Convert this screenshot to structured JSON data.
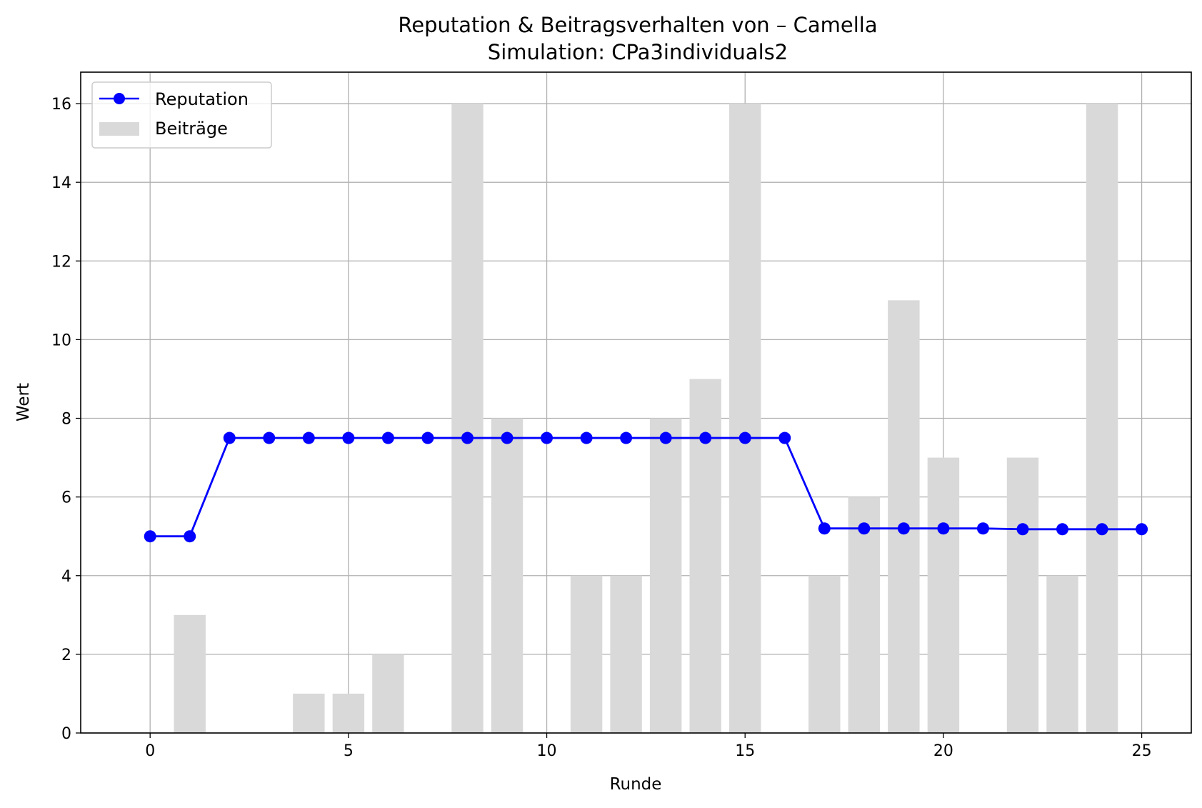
{
  "chart_data": {
    "type": "bar+line",
    "title": "Reputation & Beitragsverhalten von – Camella",
    "subtitle": "Simulation: CPa3individuals2",
    "xlabel": "Runde",
    "ylabel": "Wert",
    "xlim": [
      -1.75,
      26.25
    ],
    "ylim": [
      0,
      16.8
    ],
    "xticks": [
      0,
      5,
      10,
      15,
      20,
      25
    ],
    "yticks": [
      0,
      2,
      4,
      6,
      8,
      10,
      12,
      14,
      16
    ],
    "grid": true,
    "legend_position": "upper left",
    "x": [
      0,
      1,
      2,
      3,
      4,
      5,
      6,
      7,
      8,
      9,
      10,
      11,
      12,
      13,
      14,
      15,
      16,
      17,
      18,
      19,
      20,
      21,
      22,
      23,
      24,
      25
    ],
    "series": [
      {
        "name": "Reputation",
        "kind": "line",
        "marker": "circle",
        "color": "#0000ff",
        "values": [
          5.0,
          5.0,
          7.5,
          7.5,
          7.5,
          7.5,
          7.5,
          7.5,
          7.5,
          7.5,
          7.5,
          7.5,
          7.5,
          7.5,
          7.5,
          7.5,
          7.5,
          5.2,
          5.2,
          5.2,
          5.2,
          5.2,
          5.18,
          5.18,
          5.18,
          5.18
        ]
      },
      {
        "name": "Beiträge",
        "kind": "bar",
        "color": "#d9d9d9",
        "values": [
          0,
          3,
          0,
          0,
          1,
          1,
          2,
          0,
          16,
          8,
          0,
          4,
          4,
          8,
          9,
          16,
          0,
          4,
          6,
          11,
          7,
          0,
          7,
          4,
          16,
          0
        ]
      }
    ]
  }
}
